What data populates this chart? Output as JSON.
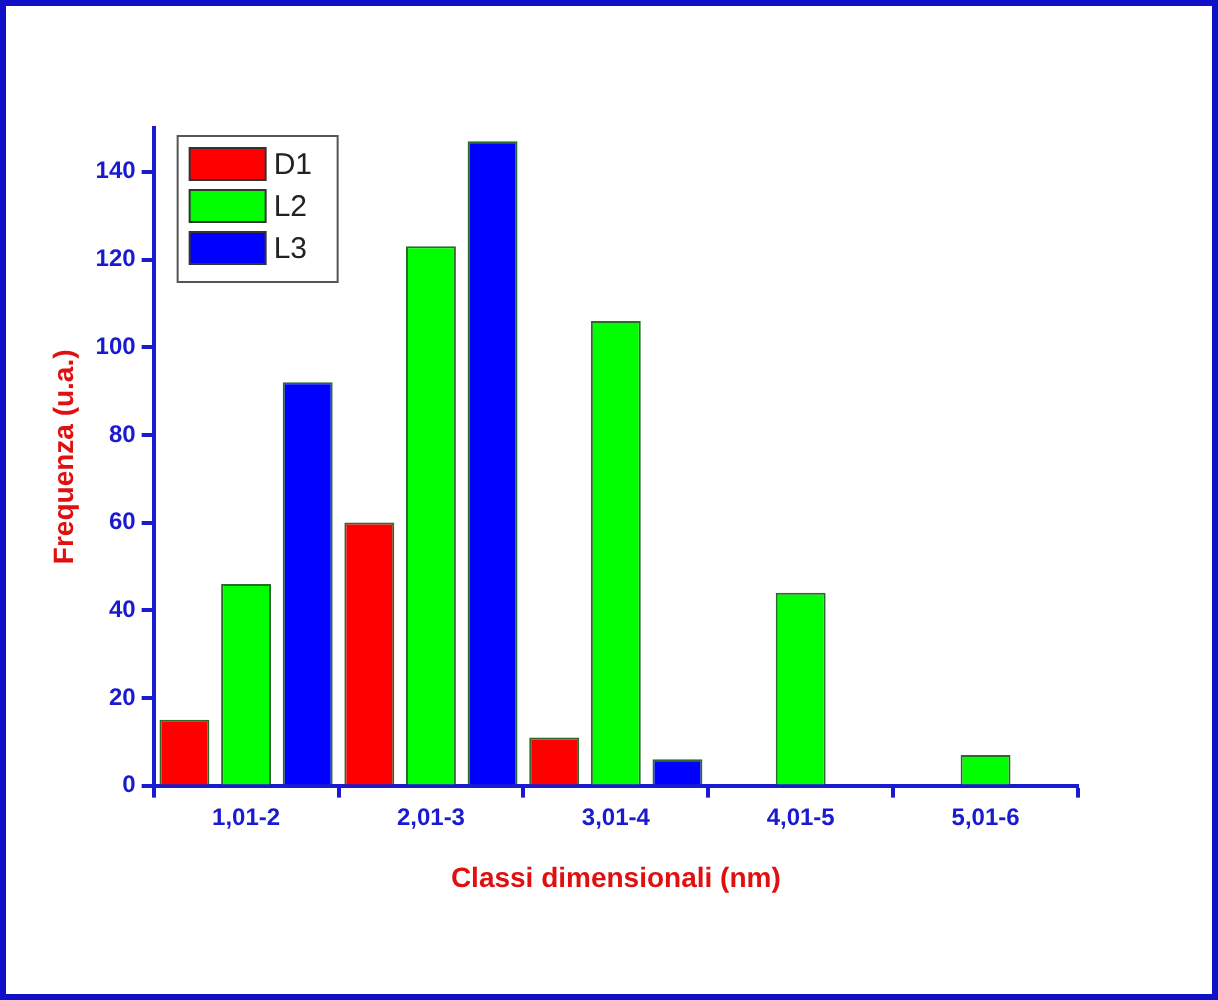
{
  "chart_data": {
    "type": "bar",
    "xlabel": "Classi dimensionali (nm)",
    "ylabel": "Frequenza (u.a.)",
    "categories": [
      "1,01-2",
      "2,01-3",
      "3,01-4",
      "4,01-5",
      "5,01-6"
    ],
    "series": [
      {
        "name": "D1",
        "color": "#ff0000",
        "values": [
          15,
          60,
          11,
          0,
          0
        ]
      },
      {
        "name": "L2",
        "color": "#00ff00",
        "values": [
          46,
          123,
          106,
          44,
          7
        ]
      },
      {
        "name": "L3",
        "color": "#0000ff",
        "values": [
          92,
          147,
          6,
          0,
          0
        ]
      }
    ],
    "ylim": [
      0,
      150
    ],
    "yticks": [
      0,
      20,
      40,
      60,
      80,
      100,
      120,
      140
    ],
    "grid": false,
    "legend": "top left"
  }
}
